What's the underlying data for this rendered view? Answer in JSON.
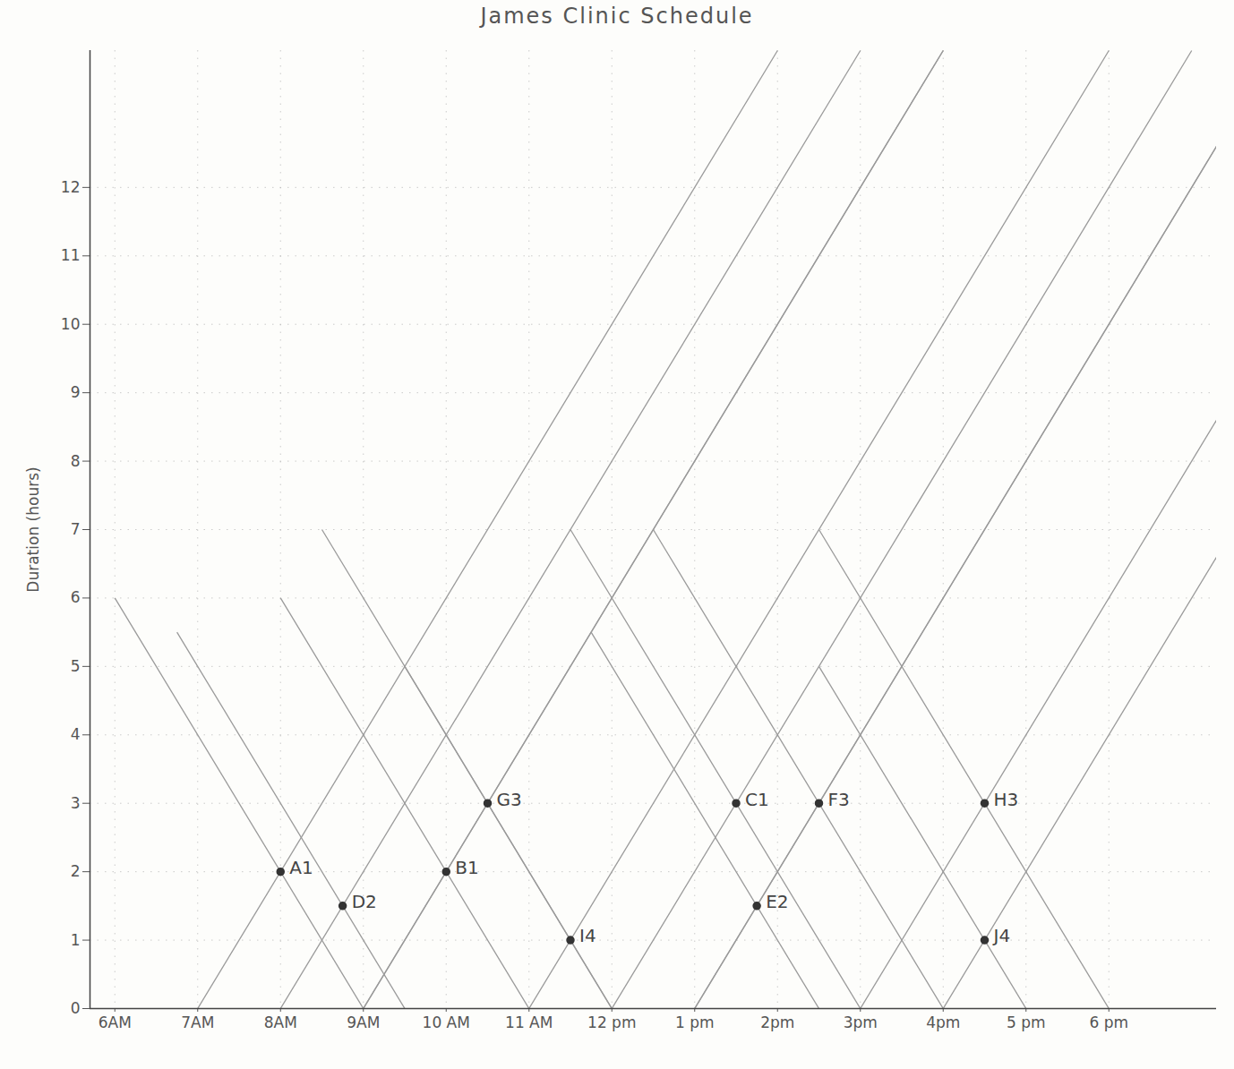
{
  "chart_data": {
    "type": "scatter",
    "title": "James Clinic Schedule",
    "y_label": "Duration (hours)",
    "x": [
      8,
      8.75,
      10,
      10.5,
      11.5,
      13.5,
      13.75,
      14.5,
      16.5,
      16.5
    ],
    "values": [
      2,
      1.5,
      2,
      3,
      1,
      3,
      1.5,
      3,
      3,
      1
    ],
    "point_labels": [
      "A1",
      "D2",
      "B1",
      "G3",
      "I4",
      "C1",
      "E2",
      "F3",
      "H3",
      "J4"
    ],
    "color": "#333333",
    "line_color": "#9a9a9a",
    "marker": "circle",
    "xlim": [
      5.7,
      19.3
    ],
    "xticks": [
      {
        "value": 6,
        "label": "6AM"
      },
      {
        "value": 7,
        "label": "7AM"
      },
      {
        "value": 8,
        "label": "8AM"
      },
      {
        "value": 9,
        "label": "9AM"
      },
      {
        "value": 10,
        "label": "10 AM"
      },
      {
        "value": 11,
        "label": "11 AM"
      },
      {
        "value": 12,
        "label": "12 pm"
      },
      {
        "value": 13,
        "label": "1 pm"
      },
      {
        "value": 14,
        "label": "2pm"
      },
      {
        "value": 15,
        "label": "3pm"
      },
      {
        "value": 16,
        "label": "4pm"
      },
      {
        "value": 17,
        "label": "5 pm"
      },
      {
        "value": 18,
        "label": "6 pm"
      }
    ],
    "ylim": [
      0,
      14
    ],
    "yticks": [
      0,
      1,
      2,
      3,
      4,
      5,
      6,
      7,
      8,
      9,
      10,
      11,
      12
    ],
    "grid": true
  }
}
